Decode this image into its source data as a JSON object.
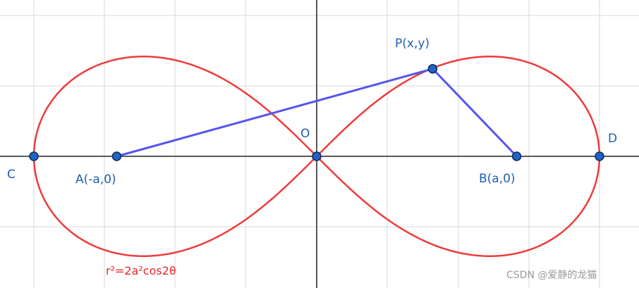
{
  "diagram": {
    "curve_equation": "r²=2a²cos2θ",
    "points": {
      "C": {
        "label": "C",
        "x": -2,
        "y": 0
      },
      "A": {
        "label": "A(-a,0)",
        "x": -1.4142,
        "y": 0
      },
      "O": {
        "label": "O",
        "x": 0,
        "y": 0
      },
      "P": {
        "label": "P(x,y)",
        "x": 0.82,
        "y": 0.62
      },
      "B": {
        "label": "B(a,0)",
        "x": 1.4142,
        "y": 0
      },
      "D": {
        "label": "D",
        "x": 2,
        "y": 0
      }
    },
    "segments": [
      [
        "A",
        "P"
      ],
      [
        "P",
        "B"
      ]
    ],
    "colors": {
      "curve": "#ee3b3b",
      "segment": "#5555f0",
      "point_fill": "#1e63c8",
      "point_stroke": "#0d2a55",
      "label": "#1f5fb0",
      "equation": "#e8262b",
      "grid": "#d9d9d9",
      "axis": "#222222"
    }
  },
  "watermark": "CSDN @爱静的龙猫"
}
